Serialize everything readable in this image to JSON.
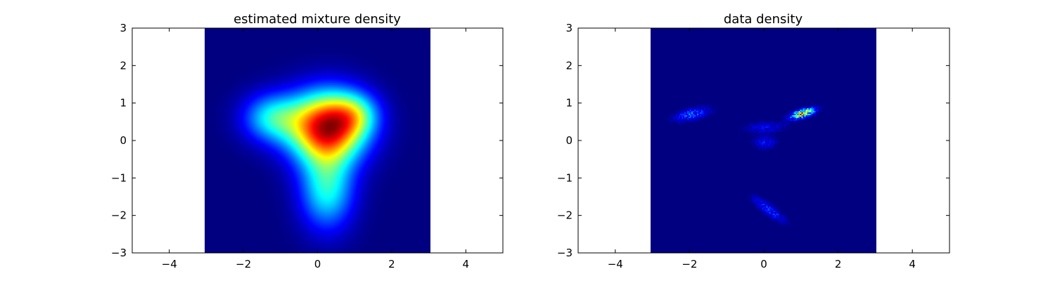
{
  "chart_data": [
    {
      "type": "heatmap",
      "title": "estimated mixture density",
      "xlabel": "",
      "ylabel": "",
      "xlim": [
        -5,
        5
      ],
      "ylim": [
        -3,
        3
      ],
      "xticks": [
        -4,
        -2,
        0,
        2,
        4
      ],
      "yticks": [
        -3,
        -2,
        -1,
        0,
        1,
        2,
        3
      ],
      "xtick_labels": [
        "−4",
        "−2",
        "0",
        "2",
        "4"
      ],
      "ytick_labels": [
        "−3",
        "−2",
        "−1",
        "0",
        "1",
        "2",
        "3"
      ],
      "extent": [
        -3,
        3,
        -3,
        3
      ],
      "colormap": "jet",
      "background": "#00007f",
      "grid": false,
      "components": [
        {
          "mean": [
            0.25,
            0.35
          ],
          "sigma": [
            0.7,
            0.65
          ],
          "rho": 0.0,
          "weight": 1.0
        },
        {
          "mean": [
            -1.2,
            0.6
          ],
          "sigma": [
            0.55,
            0.45
          ],
          "rho": 0.0,
          "weight": 0.38
        },
        {
          "mean": [
            0.25,
            -1.3
          ],
          "sigma": [
            0.5,
            0.75
          ],
          "rho": 0.0,
          "weight": 0.42
        },
        {
          "mean": [
            1.0,
            0.7
          ],
          "sigma": [
            0.45,
            0.4
          ],
          "rho": 0.0,
          "weight": 0.28
        }
      ]
    },
    {
      "type": "heatmap",
      "title": "data density",
      "xlabel": "",
      "ylabel": "",
      "xlim": [
        -5,
        5
      ],
      "ylim": [
        -3,
        3
      ],
      "xticks": [
        -4,
        -2,
        0,
        2,
        4
      ],
      "yticks": [
        -3,
        -2,
        -1,
        0,
        1,
        2,
        3
      ],
      "xtick_labels": [
        "−4",
        "−2",
        "0",
        "2",
        "4"
      ],
      "ytick_labels": [
        "−3",
        "−2",
        "−1",
        "0",
        "1",
        "2",
        "3"
      ],
      "extent": [
        -3,
        3,
        -3,
        3
      ],
      "colormap": "jet",
      "background": "#00007f",
      "grid": false,
      "components": [
        {
          "mean": [
            1.05,
            0.72
          ],
          "sigma": [
            0.2,
            0.09
          ],
          "rho": 0.6,
          "weight": 1.0
        },
        {
          "mean": [
            -1.9,
            0.7
          ],
          "sigma": [
            0.3,
            0.12
          ],
          "rho": 0.5,
          "weight": 0.28
        },
        {
          "mean": [
            0.05,
            0.35
          ],
          "sigma": [
            0.35,
            0.1
          ],
          "rho": 0.2,
          "weight": 0.14
        },
        {
          "mean": [
            0.05,
            -0.05
          ],
          "sigma": [
            0.2,
            0.12
          ],
          "rho": 0.0,
          "weight": 0.16
        },
        {
          "mean": [
            0.15,
            -1.85
          ],
          "sigma": [
            0.28,
            0.22
          ],
          "rho": -0.85,
          "weight": 0.22
        }
      ]
    }
  ]
}
